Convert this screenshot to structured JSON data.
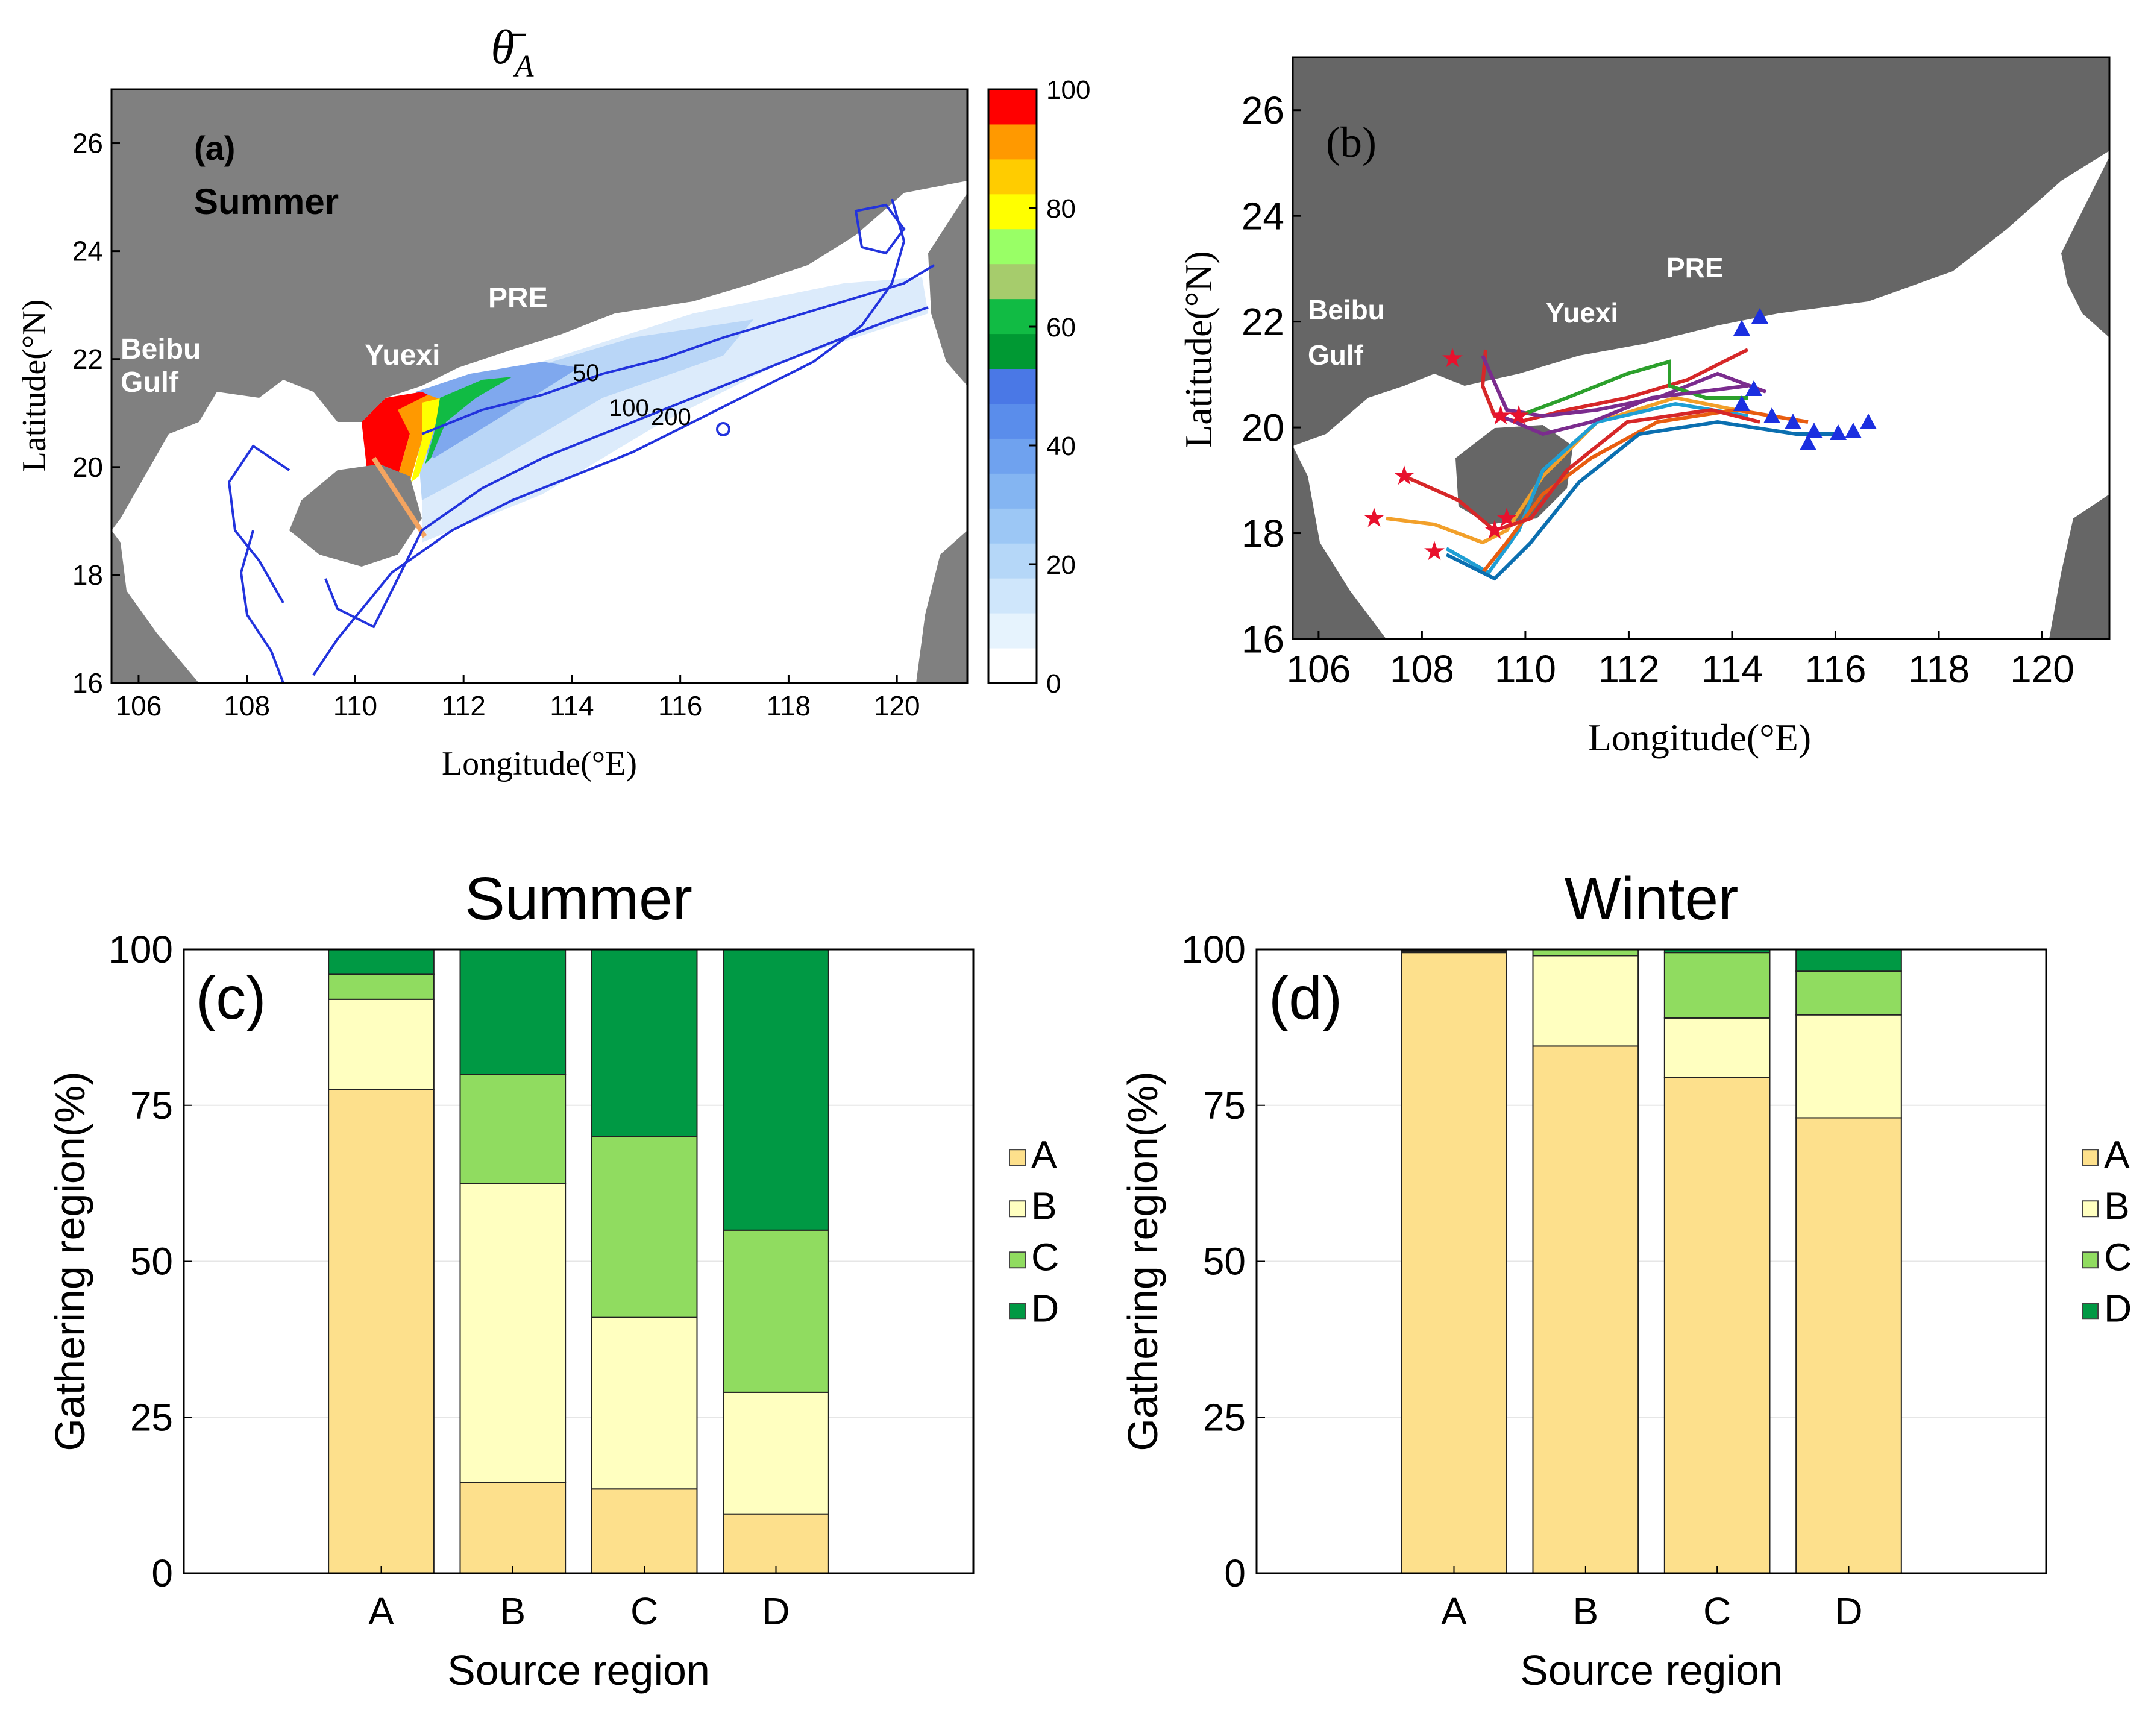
{
  "figure": {
    "panel_a": {
      "label": "(a)",
      "season": "Summer",
      "title_symbol": "θ̄",
      "title_subscript": "A",
      "xlabel": "Longitude(°E)",
      "ylabel": "Latitude(°N)",
      "xticks": [
        "106",
        "108",
        "110",
        "112",
        "114",
        "116",
        "118",
        "120"
      ],
      "yticks": [
        "16",
        "18",
        "20",
        "22",
        "24",
        "26"
      ],
      "place_labels": {
        "beibu": "Beibu",
        "gulf": "Gulf",
        "yuexi": "Yuexi",
        "pre": "PRE"
      },
      "contour_labels": [
        "50",
        "100",
        "200"
      ],
      "colorbar": {
        "ticks": [
          "0",
          "20",
          "40",
          "60",
          "80",
          "100"
        ],
        "colors": [
          "#ffffff",
          "#e6f3fd",
          "#cfe6fb",
          "#b5d7f8",
          "#9cc7f5",
          "#84b5f2",
          "#6fa2ef",
          "#5a8deb",
          "#4a78e6",
          "#009933",
          "#11bb44",
          "#a6cc6c",
          "#99ff66",
          "#ffff00",
          "#ffcc00",
          "#ff9900",
          "#ff0000"
        ]
      }
    },
    "panel_b": {
      "label": "(b)",
      "xlabel": "Longitude(°E)",
      "ylabel": "Latitude(°N)",
      "xticks": [
        "106",
        "108",
        "110",
        "112",
        "114",
        "116",
        "118",
        "120"
      ],
      "yticks": [
        "16",
        "18",
        "20",
        "22",
        "24",
        "26"
      ],
      "place_labels": {
        "beibu": "Beibu",
        "gulf": "Gulf",
        "yuexi": "Yuexi",
        "pre": "PRE"
      },
      "track_colors": [
        "#d62728",
        "#7b2c8e",
        "#2ca02c",
        "#f2a02a",
        "#1f9fd4",
        "#e85d10",
        "#0b6fb0"
      ],
      "start_marker_color": "#e8112d",
      "end_marker_color": "#1b2fe0"
    }
  },
  "chart_data": [
    {
      "type": "bar",
      "stacked": true,
      "panel": "(c)",
      "title": "Summer",
      "xlabel": "Source region",
      "ylabel": "Gathering region(%)",
      "categories": [
        "A",
        "B",
        "C",
        "D"
      ],
      "ylim": [
        0,
        100
      ],
      "yticks": [
        0,
        25,
        50,
        75,
        100
      ],
      "series": [
        {
          "name": "A",
          "color": "#fde08c",
          "values": [
            77.5,
            14.5,
            13.5,
            9.5
          ]
        },
        {
          "name": "B",
          "color": "#ffffc0",
          "values": [
            14.5,
            48.0,
            27.5,
            19.5
          ]
        },
        {
          "name": "C",
          "color": "#90dc60",
          "values": [
            4.0,
            17.5,
            29.0,
            26.0
          ]
        },
        {
          "name": "D",
          "color": "#009944",
          "values": [
            4.0,
            20.0,
            30.0,
            45.0
          ]
        }
      ],
      "legend_position": "right"
    },
    {
      "type": "bar",
      "stacked": true,
      "panel": "(d)",
      "title": "Winter",
      "xlabel": "Source region",
      "ylabel": "Gathering region(%)",
      "categories": [
        "A",
        "B",
        "C",
        "D"
      ],
      "ylim": [
        0,
        100
      ],
      "yticks": [
        0,
        25,
        50,
        75,
        100
      ],
      "series": [
        {
          "name": "A",
          "color": "#fde08c",
          "values": [
            99.5,
            84.5,
            79.5,
            73.0
          ]
        },
        {
          "name": "B",
          "color": "#ffffc0",
          "values": [
            0.2,
            14.5,
            9.5,
            16.5
          ]
        },
        {
          "name": "C",
          "color": "#90dc60",
          "values": [
            0.1,
            1.0,
            10.5,
            7.0
          ]
        },
        {
          "name": "D",
          "color": "#009944",
          "values": [
            0.2,
            0.0,
            0.5,
            3.5
          ]
        }
      ],
      "legend_position": "right"
    }
  ]
}
